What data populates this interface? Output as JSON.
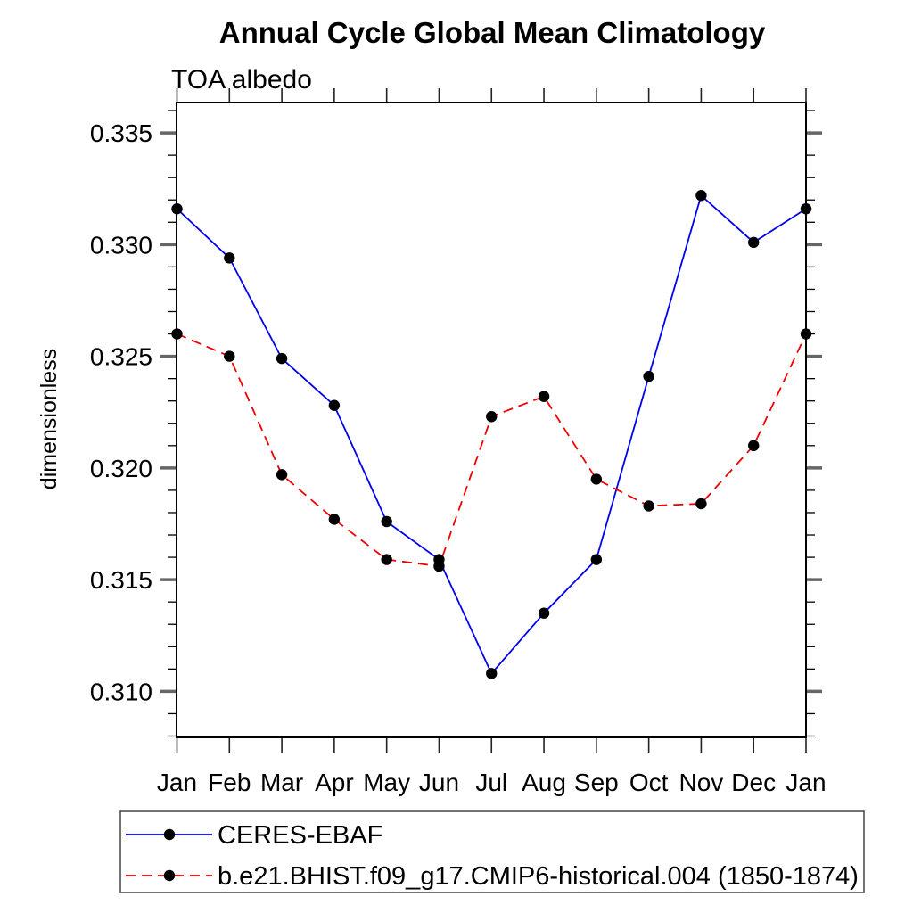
{
  "page": {
    "background_color": "#ffffff"
  },
  "chart_data": {
    "type": "line",
    "title": "Annual Cycle Global Mean Climatology",
    "subtitle": "TOA albedo",
    "xlabel": "",
    "ylabel": "dimensionless",
    "categories": [
      "Jan",
      "Feb",
      "Mar",
      "Apr",
      "May",
      "Jun",
      "Jul",
      "Aug",
      "Sep",
      "Oct",
      "Nov",
      "Dec",
      "Jan"
    ],
    "ylim": [
      0.30794,
      0.33636
    ],
    "yticks_major": [
      0.31,
      0.315,
      0.32,
      0.325,
      0.33,
      0.335
    ],
    "ytick_labels": [
      "0.310",
      "0.315",
      "0.320",
      "0.325",
      "0.330",
      "0.335"
    ],
    "minor_tick_step": 0.001,
    "grid": false,
    "legend_position": "bottom-left-box",
    "frame_color": "#000000",
    "major_tick_color": "#666666",
    "minor_tick_color": "#000000",
    "marker_color": "#000000",
    "series": [
      {
        "name": "CERES-EBAF",
        "color": "#0000EE",
        "line_style": "solid",
        "marker": "filled-circle",
        "values": [
          0.3316,
          0.3294,
          0.3249,
          0.3228,
          0.3176,
          0.3159,
          0.3108,
          0.3135,
          0.3159,
          0.3241,
          0.3322,
          0.3301,
          0.3316
        ]
      },
      {
        "name": "b.e21.BHIST.f09_g17.CMIP6-historical.004 (1850-1874)",
        "color": "#EE0000",
        "line_style": "dashed",
        "marker": "filled-circle",
        "values": [
          0.326,
          0.325,
          0.3197,
          0.3177,
          0.3159,
          0.3156,
          0.3223,
          0.3232,
          0.3195,
          0.3183,
          0.3184,
          0.321,
          0.326
        ]
      }
    ]
  }
}
